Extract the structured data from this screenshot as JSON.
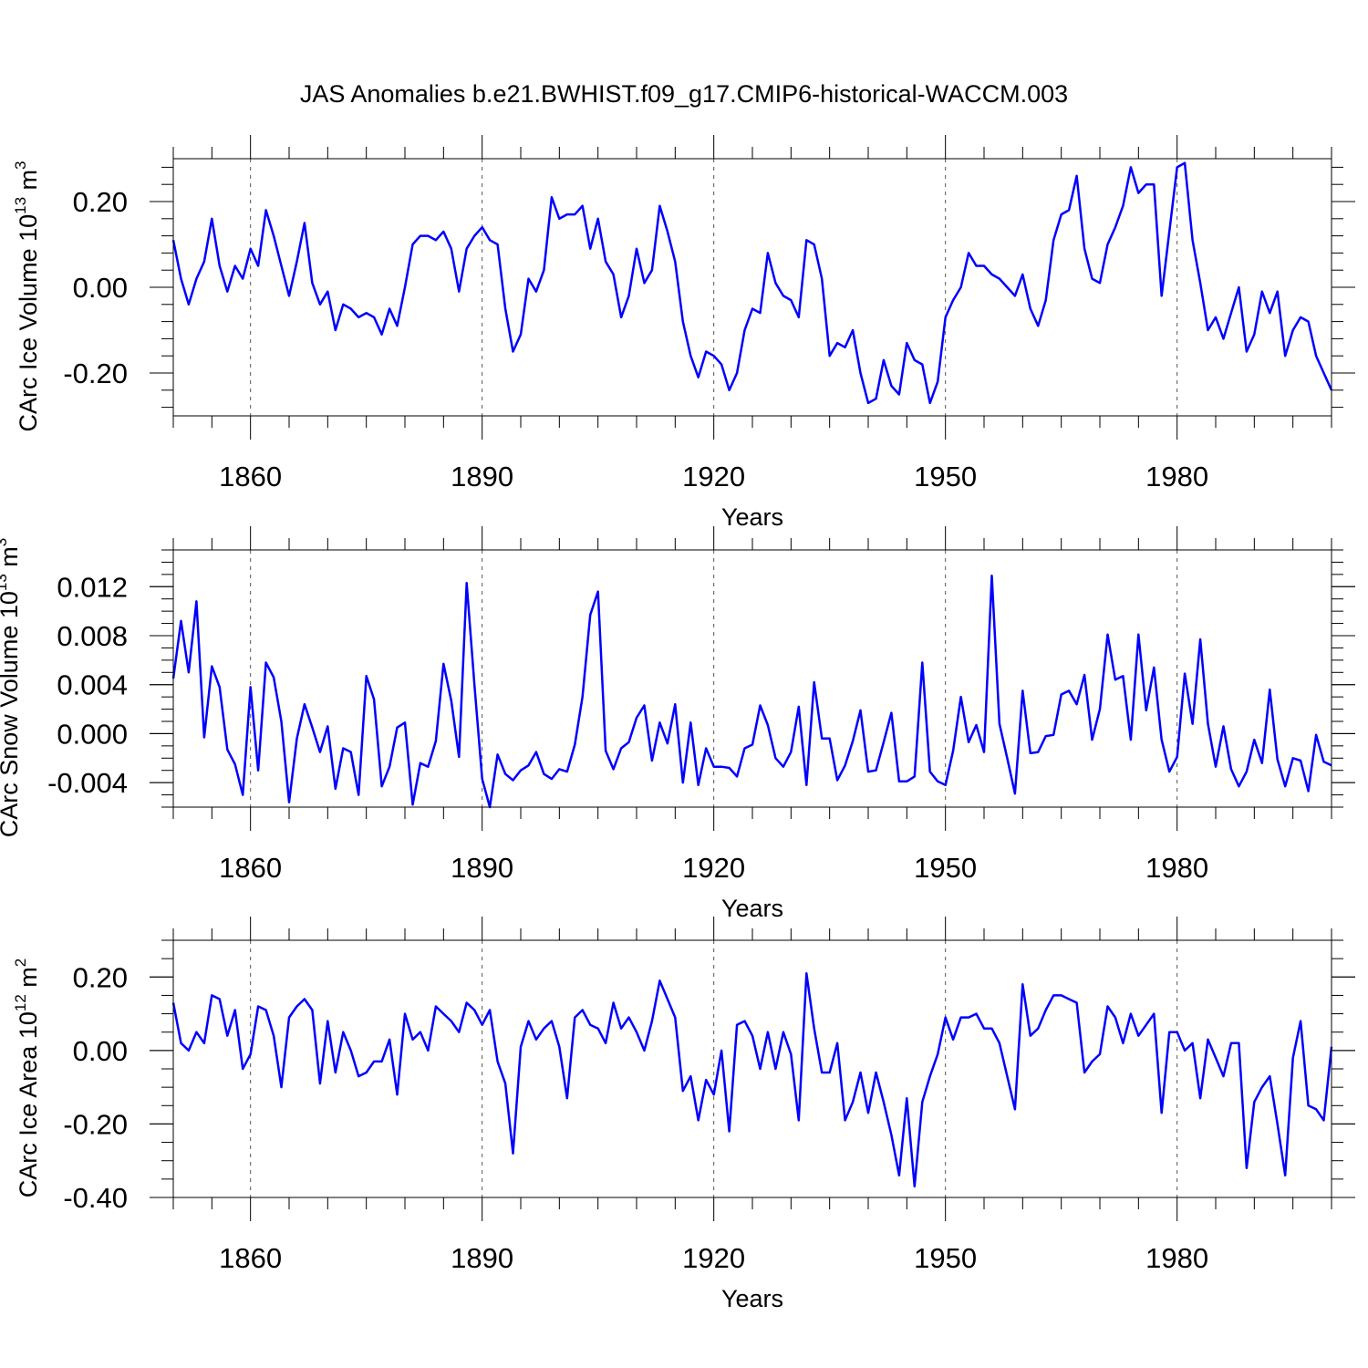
{
  "chart_data": {
    "type": "line",
    "title": "JAS Anomalies b.e21.BWHIST.f09_g17.CMIP6-historical-WACCM.003",
    "panels": [
      {
        "ylabel": "CArc Ice Volume 10",
        "ylabel_exp": "13",
        "ylabel_unit": " m",
        "ylabel_unit_exp": "3",
        "xlabel": "Years",
        "ylim": [
          -0.3,
          0.3
        ],
        "xlim": [
          1850,
          2000
        ],
        "yticks": [
          -0.2,
          0.0,
          0.2
        ],
        "ytick_labels": [
          "-0.20",
          "0.00",
          "0.20"
        ],
        "yminor_step": 0.04,
        "xticks": [
          1860,
          1890,
          1920,
          1950,
          1980
        ],
        "xtick_labels": [
          "1860",
          "1890",
          "1920",
          "1950",
          "1980"
        ],
        "x_start": 1850,
        "values": [
          0.11,
          0.02,
          -0.04,
          0.02,
          0.06,
          0.16,
          0.05,
          -0.01,
          0.05,
          0.02,
          0.09,
          0.05,
          0.18,
          0.12,
          0.05,
          -0.02,
          0.06,
          0.15,
          0.01,
          -0.04,
          -0.01,
          -0.1,
          -0.04,
          -0.05,
          -0.07,
          -0.06,
          -0.07,
          -0.11,
          -0.05,
          -0.09,
          0.0,
          0.1,
          0.12,
          0.12,
          0.11,
          0.13,
          0.09,
          -0.01,
          0.09,
          0.12,
          0.14,
          0.11,
          0.1,
          -0.05,
          -0.15,
          -0.11,
          0.02,
          -0.01,
          0.04,
          0.21,
          0.16,
          0.17,
          0.17,
          0.19,
          0.09,
          0.16,
          0.06,
          0.03,
          -0.07,
          -0.02,
          0.09,
          0.01,
          0.04,
          0.19,
          0.13,
          0.06,
          -0.08,
          -0.16,
          -0.21,
          -0.15,
          -0.16,
          -0.18,
          -0.24,
          -0.2,
          -0.1,
          -0.05,
          -0.06,
          0.08,
          0.01,
          -0.02,
          -0.03,
          -0.07,
          0.11,
          0.1,
          0.02,
          -0.16,
          -0.13,
          -0.14,
          -0.1,
          -0.2,
          -0.27,
          -0.26,
          -0.17,
          -0.23,
          -0.25,
          -0.13,
          -0.17,
          -0.18,
          -0.27,
          -0.22,
          -0.07,
          -0.03,
          0.0,
          0.08,
          0.05,
          0.05,
          0.03,
          0.02,
          0.0,
          -0.02,
          0.03,
          -0.05,
          -0.09,
          -0.03,
          0.11,
          0.17,
          0.18,
          0.26,
          0.09,
          0.02,
          0.01,
          0.1,
          0.14,
          0.19,
          0.28,
          0.22,
          0.24,
          0.24,
          -0.02,
          0.13,
          0.28,
          0.29,
          0.11,
          0.01,
          -0.1,
          -0.07,
          -0.12,
          -0.06,
          0.0,
          -0.15,
          -0.11,
          -0.01,
          -0.06,
          -0.01,
          -0.16,
          -0.1,
          -0.07,
          -0.08,
          -0.16,
          -0.2,
          -0.24
        ]
      },
      {
        "ylabel": "CArc Snow Volume 10",
        "ylabel_exp": "13",
        "ylabel_unit": " m",
        "ylabel_unit_exp": "3",
        "xlabel": "Years",
        "ylim": [
          -0.006,
          0.015
        ],
        "xlim": [
          1850,
          2000
        ],
        "yticks": [
          -0.004,
          0.0,
          0.004,
          0.008,
          0.012
        ],
        "ytick_labels": [
          "-0.004",
          "0.000",
          "0.004",
          "0.008",
          "0.012"
        ],
        "yminor_step": 0.001,
        "xticks": [
          1860,
          1890,
          1920,
          1950,
          1980
        ],
        "xtick_labels": [
          "1860",
          "1890",
          "1920",
          "1950",
          "1980"
        ],
        "x_start": 1850,
        "values": [
          0.0045,
          0.0092,
          0.005,
          0.0108,
          -0.0003,
          0.0055,
          0.0038,
          -0.0013,
          -0.0025,
          -0.005,
          0.0038,
          -0.003,
          0.0058,
          0.0046,
          0.001,
          -0.0056,
          -0.0004,
          0.0024,
          0.0005,
          -0.0015,
          0.0006,
          -0.0045,
          -0.0012,
          -0.0015,
          -0.005,
          0.0047,
          0.0028,
          -0.0043,
          -0.0027,
          0.0005,
          0.0009,
          -0.0058,
          -0.0024,
          -0.0027,
          -0.0006,
          0.0057,
          0.0027,
          -0.0019,
          0.0123,
          0.004,
          -0.0037,
          -0.006,
          -0.0017,
          -0.0033,
          -0.0038,
          -0.003,
          -0.0026,
          -0.0015,
          -0.0033,
          -0.0037,
          -0.0029,
          -0.0031,
          -0.0009,
          0.003,
          0.0097,
          0.0116,
          -0.0014,
          -0.0029,
          -0.0012,
          -0.0007,
          0.0013,
          0.0023,
          -0.0022,
          0.0009,
          -0.0008,
          0.0024,
          -0.004,
          0.0009,
          -0.0042,
          -0.0012,
          -0.0027,
          -0.0027,
          -0.0028,
          -0.0035,
          -0.0012,
          -0.0009,
          0.0023,
          0.0007,
          -0.002,
          -0.0027,
          -0.0015,
          0.0022,
          -0.0042,
          0.0042,
          -0.0004,
          -0.0004,
          -0.0038,
          -0.0026,
          -0.0006,
          0.0019,
          -0.0031,
          -0.003,
          -0.0007,
          0.0017,
          -0.0039,
          -0.0039,
          -0.0035,
          0.0058,
          -0.0031,
          -0.0039,
          -0.0042,
          -0.0014,
          0.003,
          -0.0007,
          0.0007,
          -0.0015,
          0.0129,
          0.0008,
          -0.002,
          -0.0049,
          0.0035,
          -0.0016,
          -0.0015,
          -0.0002,
          -0.0001,
          0.0032,
          0.0035,
          0.0024,
          0.0048,
          -0.0005,
          0.002,
          0.0081,
          0.0044,
          0.0047,
          -0.0005,
          0.0081,
          0.0019,
          0.0054,
          -0.0005,
          -0.0031,
          -0.0019,
          0.0049,
          0.0008,
          0.0077,
          0.0008,
          -0.0027,
          0.0006,
          -0.0029,
          -0.0043,
          -0.0031,
          -0.0005,
          -0.0024,
          0.0036,
          -0.0021,
          -0.0043,
          -0.002,
          -0.0022,
          -0.0047,
          -0.0001,
          -0.0023,
          -0.0026
        ]
      },
      {
        "ylabel": "CArc Ice Area 10",
        "ylabel_exp": "12",
        "ylabel_unit": " m",
        "ylabel_unit_exp": "2",
        "xlabel": "Years",
        "ylim": [
          -0.4,
          0.3
        ],
        "xlim": [
          1850,
          2000
        ],
        "yticks": [
          -0.4,
          -0.2,
          0.0,
          0.2
        ],
        "ytick_labels": [
          "-0.40",
          "-0.20",
          "0.00",
          "0.20"
        ],
        "yminor_step": 0.05,
        "xticks": [
          1860,
          1890,
          1920,
          1950,
          1980
        ],
        "xtick_labels": [
          "1860",
          "1890",
          "1920",
          "1950",
          "1980"
        ],
        "x_start": 1850,
        "values": [
          0.13,
          0.02,
          0.0,
          0.05,
          0.02,
          0.15,
          0.14,
          0.04,
          0.11,
          -0.05,
          -0.01,
          0.12,
          0.11,
          0.04,
          -0.1,
          0.09,
          0.12,
          0.14,
          0.11,
          -0.09,
          0.08,
          -0.06,
          0.05,
          0.0,
          -0.07,
          -0.06,
          -0.03,
          -0.03,
          0.03,
          -0.12,
          0.1,
          0.03,
          0.05,
          0.0,
          0.12,
          0.1,
          0.08,
          0.05,
          0.13,
          0.11,
          0.07,
          0.11,
          -0.03,
          -0.09,
          -0.28,
          0.01,
          0.08,
          0.03,
          0.06,
          0.08,
          0.01,
          -0.13,
          0.09,
          0.11,
          0.07,
          0.06,
          0.02,
          0.13,
          0.06,
          0.09,
          0.05,
          0.0,
          0.08,
          0.19,
          0.14,
          0.09,
          -0.11,
          -0.07,
          -0.19,
          -0.08,
          -0.12,
          0.0,
          -0.22,
          0.07,
          0.08,
          0.04,
          -0.05,
          0.05,
          -0.05,
          0.05,
          -0.01,
          -0.19,
          0.21,
          0.06,
          -0.06,
          -0.06,
          0.02,
          -0.19,
          -0.14,
          -0.06,
          -0.17,
          -0.06,
          -0.14,
          -0.23,
          -0.34,
          -0.13,
          -0.37,
          -0.14,
          -0.07,
          -0.01,
          0.09,
          0.03,
          0.09,
          0.09,
          0.1,
          0.06,
          0.06,
          0.02,
          -0.07,
          -0.16,
          0.18,
          0.04,
          0.06,
          0.11,
          0.15,
          0.15,
          0.14,
          0.13,
          -0.06,
          -0.03,
          -0.01,
          0.12,
          0.09,
          0.02,
          0.1,
          0.04,
          0.07,
          0.1,
          -0.17,
          0.05,
          0.05,
          0.0,
          0.02,
          -0.13,
          0.03,
          -0.02,
          -0.07,
          0.02,
          0.02,
          -0.32,
          -0.14,
          -0.1,
          -0.07,
          -0.2,
          -0.34,
          -0.02,
          0.08,
          -0.15,
          -0.16,
          -0.19,
          0.01
        ]
      }
    ]
  }
}
